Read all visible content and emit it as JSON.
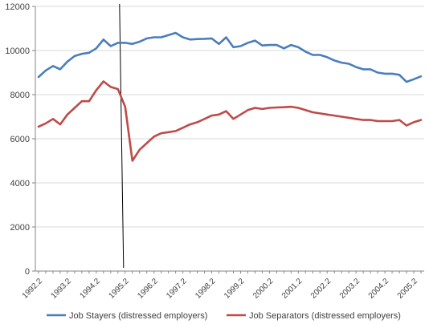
{
  "chart_data": {
    "type": "line",
    "title": "",
    "xlabel": "",
    "ylabel": "",
    "ylim": [
      0,
      12000
    ],
    "y_ticks": [
      0,
      2000,
      4000,
      6000,
      8000,
      10000,
      12000
    ],
    "y_tick_labels": [
      "0",
      "2000",
      "4000",
      "6000",
      "8000",
      "10000",
      "12000"
    ],
    "x_tick_labels": [
      "1992.2",
      "1993.2",
      "1994.2",
      "1995.2",
      "1996.2",
      "1997.2",
      "1998.2",
      "1999.2",
      "2000.2",
      "2001.2",
      "2002.2",
      "2003.2",
      "2004.2",
      "2005.2"
    ],
    "x": [
      "1992.2",
      "1992.3",
      "1992.4",
      "1993.1",
      "1993.2",
      "1993.3",
      "1993.4",
      "1994.1",
      "1994.2",
      "1994.3",
      "1994.4",
      "1995.1",
      "1995.2",
      "1995.3",
      "1995.4",
      "1996.1",
      "1996.2",
      "1996.3",
      "1996.4",
      "1997.1",
      "1997.2",
      "1997.3",
      "1997.4",
      "1998.1",
      "1998.2",
      "1998.3",
      "1998.4",
      "1999.1",
      "1999.2",
      "1999.3",
      "1999.4",
      "2000.1",
      "2000.2",
      "2000.3",
      "2000.4",
      "2001.1",
      "2001.2",
      "2001.3",
      "2001.4",
      "2002.1",
      "2002.2",
      "2002.3",
      "2002.4",
      "2003.1",
      "2003.2",
      "2003.3",
      "2003.4",
      "2004.1",
      "2004.2",
      "2004.3",
      "2004.4",
      "2005.1",
      "2005.2",
      "2005.3"
    ],
    "grid": "horizontal",
    "legend_position": "bottom",
    "vertical_marker_at": "1995.1",
    "series": [
      {
        "name": "Job Stayers (distressed employers)",
        "color": "#4a7ebb",
        "values": [
          8800,
          9100,
          9300,
          9150,
          9500,
          9750,
          9850,
          9900,
          10100,
          10500,
          10200,
          10350,
          10350,
          10300,
          10400,
          10550,
          10600,
          10600,
          10700,
          10800,
          10600,
          10500,
          10520,
          10530,
          10550,
          10300,
          10600,
          10150,
          10200,
          10350,
          10450,
          10230,
          10250,
          10250,
          10100,
          10250,
          10150,
          9950,
          9800,
          9800,
          9700,
          9550,
          9450,
          9400,
          9250,
          9150,
          9150,
          9000,
          8950,
          8950,
          8900,
          8580,
          8700,
          8830
        ]
      },
      {
        "name": "Job Separators (distressed employers)",
        "color": "#be4b48",
        "values": [
          6550,
          6700,
          6900,
          6650,
          7100,
          7400,
          7700,
          7700,
          8200,
          8600,
          8350,
          8250,
          7450,
          5000,
          5500,
          5800,
          6100,
          6250,
          6300,
          6350,
          6500,
          6650,
          6750,
          6900,
          7050,
          7100,
          7250,
          6900,
          7100,
          7300,
          7400,
          7350,
          7400,
          7420,
          7430,
          7450,
          7400,
          7300,
          7200,
          7150,
          7100,
          7050,
          7000,
          6950,
          6900,
          6850,
          6850,
          6800,
          6800,
          6800,
          6850,
          6600,
          6750,
          6850
        ]
      }
    ]
  }
}
